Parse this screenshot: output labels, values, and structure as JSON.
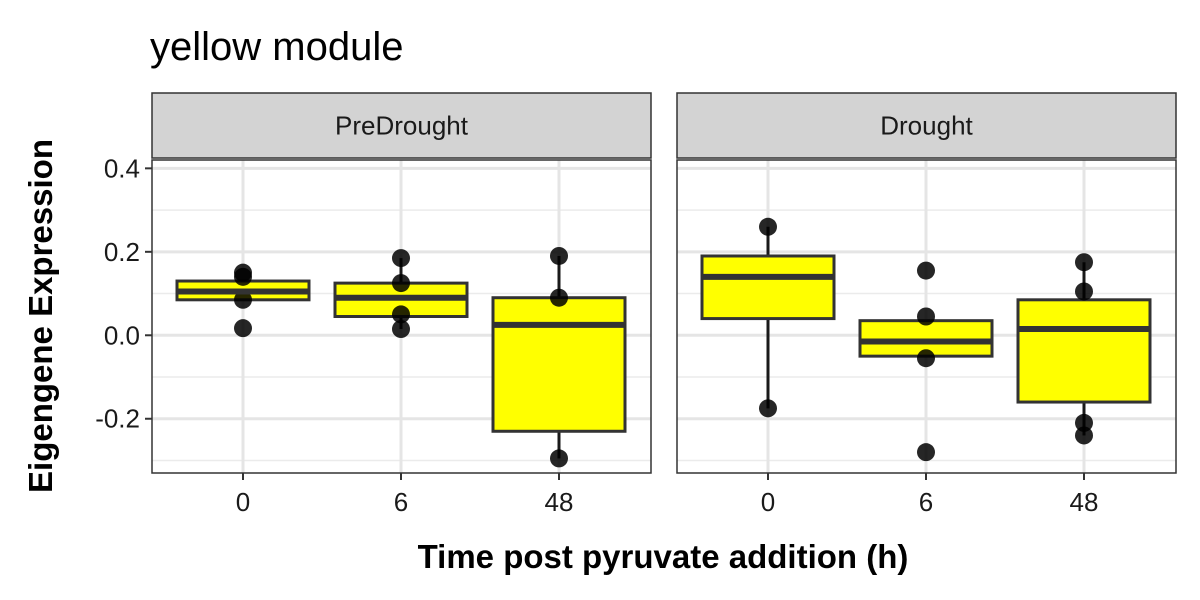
{
  "chart_data": {
    "type": "boxplot",
    "title": "yellow module",
    "xlabel": "Time post pyruvate addition (h)",
    "ylabel": "Eigengene Expression",
    "ylim": [
      -0.33,
      0.42
    ],
    "yticks": [
      {
        "value": 0.4,
        "label": "0.4"
      },
      {
        "value": 0.2,
        "label": "0.2"
      },
      {
        "value": 0.0,
        "label": "0.0"
      },
      {
        "value": -0.2,
        "label": "-0.2"
      }
    ],
    "categories": [
      "0",
      "6",
      "48"
    ],
    "grid": true,
    "fill_color": "#ffff00",
    "facets": [
      {
        "name": "PreDrought",
        "boxes": [
          {
            "x": "0",
            "q1": 0.085,
            "median": 0.105,
            "q3": 0.13,
            "whisker_low": 0.085,
            "whisker_high": 0.13,
            "points": [
              0.15,
              0.14,
              0.085,
              0.017
            ]
          },
          {
            "x": "6",
            "q1": 0.045,
            "median": 0.09,
            "q3": 0.125,
            "whisker_low": 0.015,
            "whisker_high": 0.185,
            "points": [
              0.185,
              0.125,
              0.05,
              0.015
            ]
          },
          {
            "x": "48",
            "q1": -0.23,
            "median": 0.025,
            "q3": 0.09,
            "whisker_low": -0.295,
            "whisker_high": 0.19,
            "points": [
              0.19,
              0.09,
              -0.295
            ]
          }
        ]
      },
      {
        "name": "Drought",
        "boxes": [
          {
            "x": "0",
            "q1": 0.04,
            "median": 0.14,
            "q3": 0.19,
            "whisker_low": -0.175,
            "whisker_high": 0.26,
            "points": [
              0.26,
              -0.175
            ]
          },
          {
            "x": "6",
            "q1": -0.05,
            "median": -0.015,
            "q3": 0.035,
            "whisker_low": -0.05,
            "whisker_high": 0.035,
            "points": [
              0.155,
              0.045,
              -0.055,
              -0.28
            ]
          },
          {
            "x": "48",
            "q1": -0.16,
            "median": 0.015,
            "q3": 0.085,
            "whisker_low": -0.24,
            "whisker_high": 0.175,
            "points": [
              0.175,
              0.105,
              -0.21,
              -0.24
            ]
          }
        ]
      }
    ]
  }
}
